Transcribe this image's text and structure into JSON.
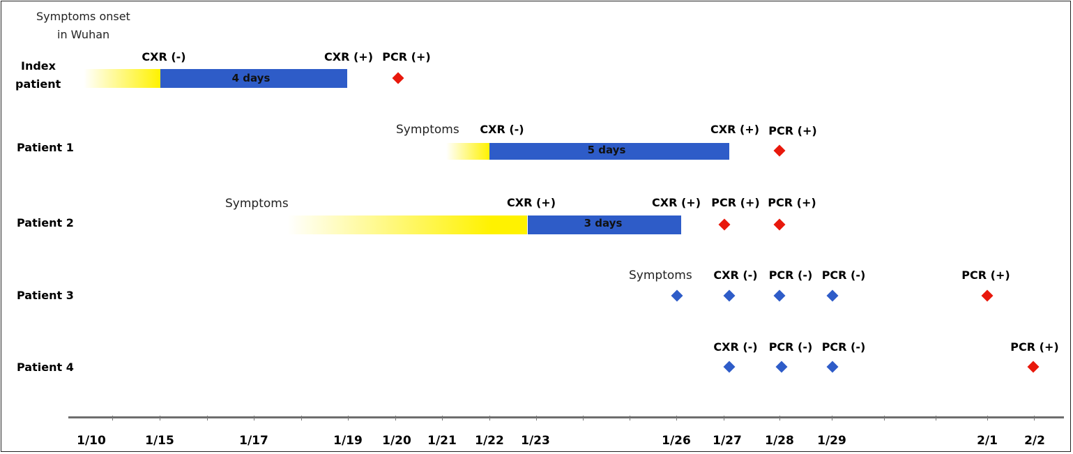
{
  "title_note": {
    "line1": "Symptoms onset",
    "line2": "in Wuhan"
  },
  "rows": [
    {
      "label_line1": "Index",
      "label_line2": "patient"
    },
    {
      "label": "Patient 1"
    },
    {
      "label": "Patient 2"
    },
    {
      "label": "Patient 3"
    },
    {
      "label": "Patient 4"
    }
  ],
  "events": {
    "index": {
      "cxr_neg": "CXR (-)",
      "cxr_pos": "CXR (+)",
      "pcr_pos": "PCR (+)",
      "duration": "4 days"
    },
    "p1": {
      "symptoms": "Symptoms",
      "cxr_neg": "CXR (-)",
      "cxr_pos": "CXR (+)",
      "pcr_pos": "PCR (+)",
      "duration": "5 days"
    },
    "p2": {
      "symptoms": "Symptoms",
      "cxr_pos_1": "CXR (+)",
      "cxr_pos_2": "CXR (+)",
      "pcr_pos_1": "PCR (+)",
      "pcr_pos_2": "PCR (+)",
      "duration": "3 days"
    },
    "p3": {
      "symptoms": "Symptoms",
      "cxr_neg": "CXR (-)",
      "pcr_neg_1": "PCR (-)",
      "pcr_neg_2": "PCR (-)",
      "pcr_pos": "PCR (+)"
    },
    "p4": {
      "cxr_neg": "CXR (-)",
      "pcr_neg_1": "PCR (-)",
      "pcr_neg_2": "PCR (-)",
      "pcr_pos": "PCR (+)"
    }
  },
  "axis": {
    "ticks": [
      "1/10",
      "1/15",
      "1/17",
      "1/19",
      "1/20",
      "1/21",
      "1/22",
      "1/23",
      "1/26",
      "1/27",
      "1/28",
      "1/29",
      "2/1",
      "2/2"
    ]
  },
  "colors": {
    "bar": "#2e5cc8",
    "positive_marker": "#e8180c",
    "negative_marker": "#2e5cc8",
    "symptom_fade": "#fff200"
  }
}
